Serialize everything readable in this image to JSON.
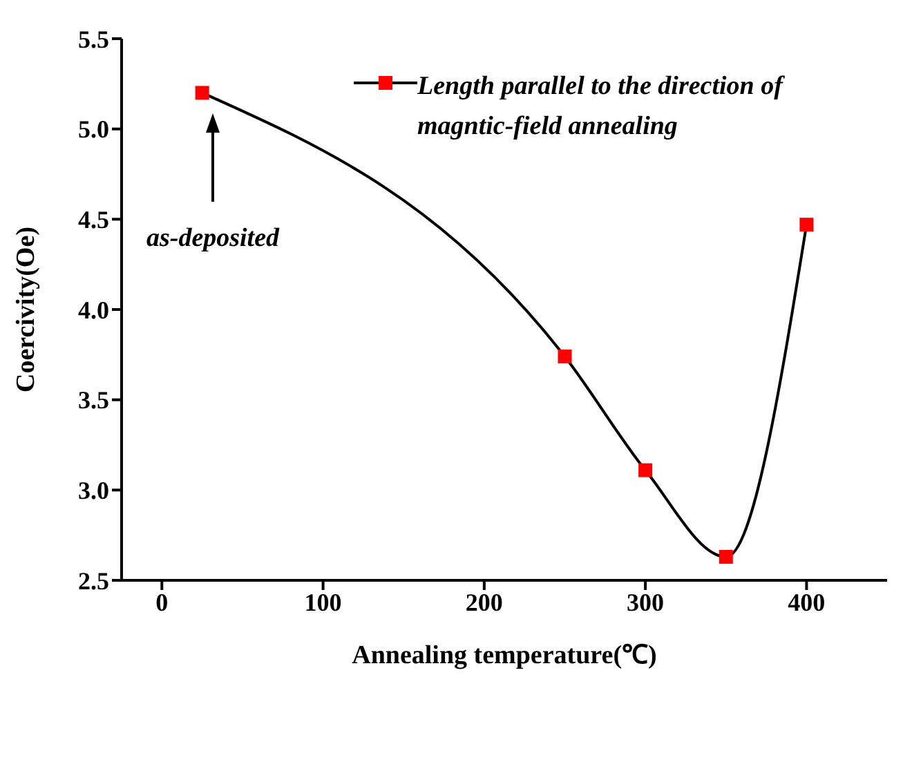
{
  "chart_data": {
    "type": "line",
    "xlabel": "Annealing temperature(℃)",
    "ylabel": "Coercivity(Oe)",
    "x": [
      25,
      250,
      300,
      350,
      400
    ],
    "series": [
      {
        "name": "Length parallel to the direction of magntic-field annealing",
        "color": "#ff0000",
        "values": [
          5.2,
          3.74,
          3.11,
          2.63,
          4.47
        ]
      }
    ],
    "xlim": [
      -25,
      450
    ],
    "xticks": [
      0,
      100,
      200,
      300,
      400
    ],
    "ylim": [
      2.5,
      5.5
    ],
    "yticks": [
      2.5,
      {
        "value": 3,
        "label": "3.0"
      },
      3.5,
      {
        "value": 4,
        "label": "4.0"
      },
      4.5,
      {
        "value": 5,
        "label": "5.0"
      },
      5.5
    ],
    "marker": "square",
    "line_style": "solid",
    "legend": "top right",
    "grid": false,
    "annotations": [
      "as-deposited"
    ]
  }
}
